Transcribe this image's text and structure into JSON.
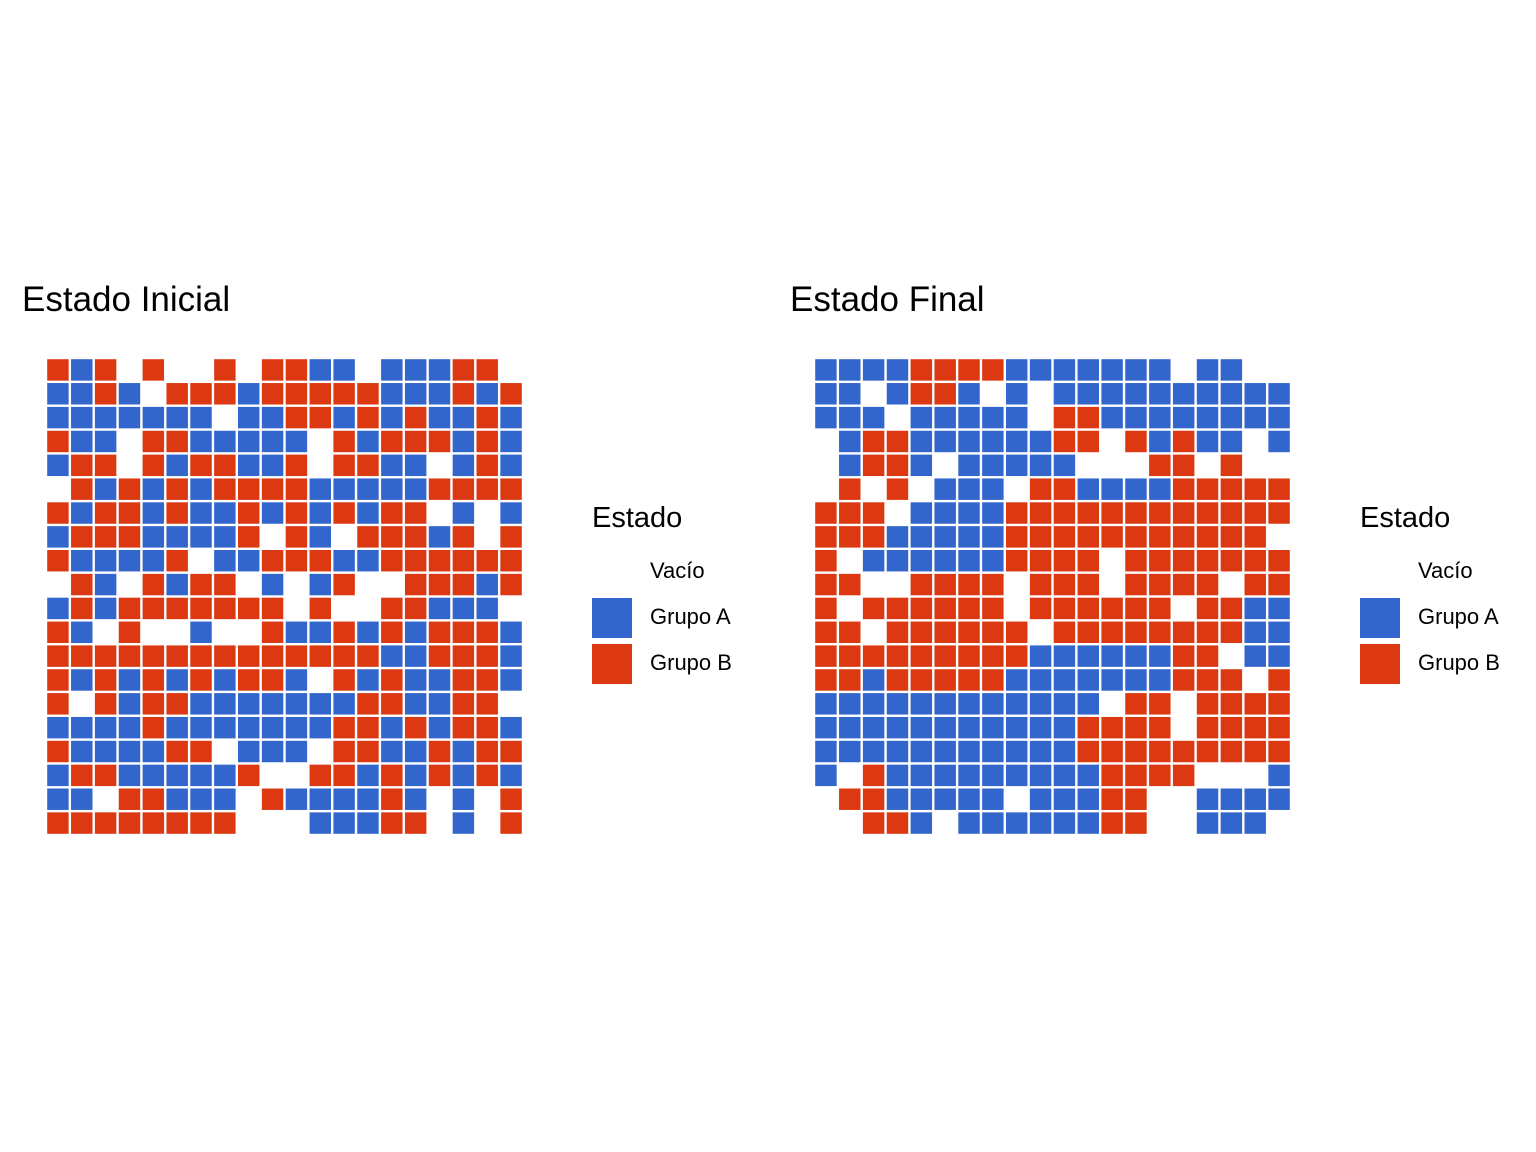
{
  "chart_data": [
    {
      "type": "heatmap",
      "title": "Estado Inicial",
      "legend_title": "Estado",
      "legend_position": "right",
      "categories": [
        "Vacío",
        "Grupo A",
        "Grupo B"
      ],
      "colors": {
        "Vacío": "#FFFFFF",
        "Grupo A": "#3366CC",
        "Grupo B": "#DC3912"
      },
      "grid_size": [
        20,
        20
      ],
      "legend": "0 = Vacío, 1 = Grupo A, 2 = Grupo B",
      "rows": [
        "21202002022110111220",
        "11210222122222111212",
        "11111110112212121121",
        "21102211111021222121",
        "12202122112022110121",
        "02121212222111112222",
        "21221211212121220101",
        "12221111202102221202",
        "21111201122211222222",
        "02102122010120022212",
        "12122222220200221110",
        "21020010021121212221",
        "22222222222222112221",
        "21212121221021211221",
        "20212211111112211220",
        "11112111111122121221",
        "21111220111022112122",
        "12211111200221212121",
        "11022111021111210102",
        "22222222000111220102"
      ]
    },
    {
      "type": "heatmap",
      "title": "Estado Final",
      "legend_title": "Estado",
      "legend_position": "right",
      "categories": [
        "Vacío",
        "Grupo A",
        "Grupo B"
      ],
      "colors": {
        "Vacío": "#FFFFFF",
        "Grupo A": "#3366CC",
        "Grupo B": "#DC3912"
      },
      "grid_size": [
        20,
        20
      ],
      "legend": "0 = Vacío, 1 = Grupo A, 2 = Grupo B",
      "rows": [
        "11112222111111101100",
        "11012210101111111111",
        "11101111102211111111",
        "01221111112202121101",
        "01221011111000220200",
        "02020111022111122222",
        "22201111222222222222",
        "22211111222222222220",
        "20111111222202222222",
        "22002222022202222022",
        "20222222022222202211",
        "22022222202222222211",
        "22222222211111122011",
        "22122222111111122202",
        "11111111111102202222",
        "11111111111222202222",
        "11111111111222222222",
        "10211111111122220001",
        "02211111011122001111",
        "00221011111122001110"
      ]
    }
  ]
}
